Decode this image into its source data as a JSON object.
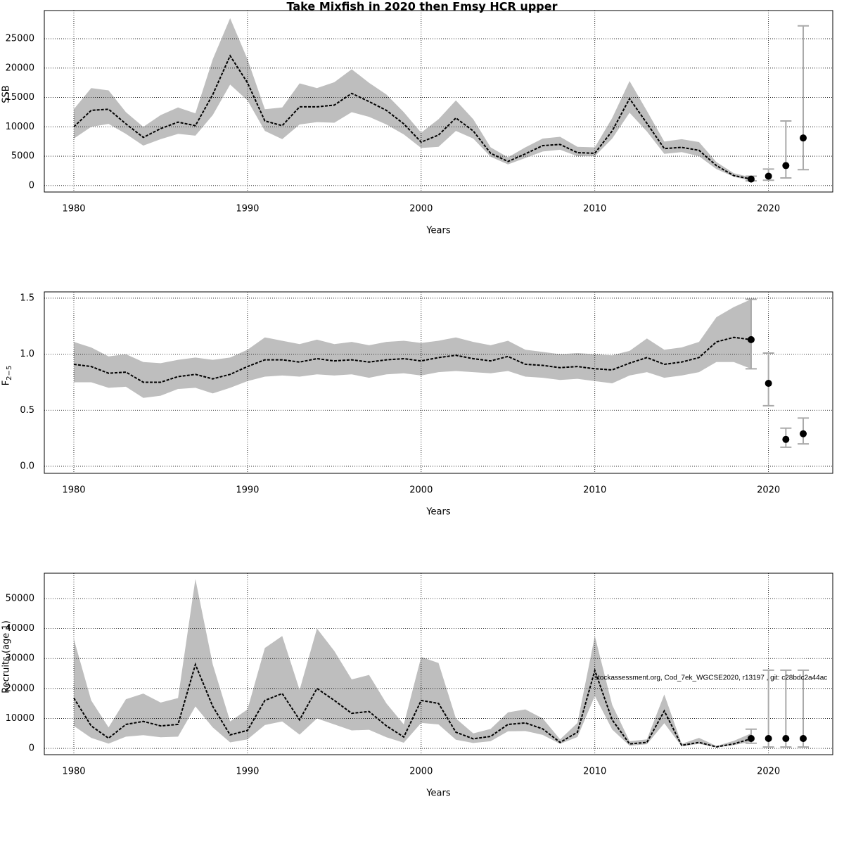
{
  "title": "Take Mixfish in 2020 then Fmsy HCR upper",
  "annotation": "stockassessment.org, Cod_7ek_WGCSE2020, r13197 , git: c28bdc2a44ac",
  "chart_data": [
    {
      "type": "line",
      "ylabel": "SSB",
      "xlabel": "Years",
      "x": [
        1980,
        1981,
        1982,
        1983,
        1984,
        1985,
        1986,
        1987,
        1988,
        1989,
        1990,
        1991,
        1992,
        1993,
        1994,
        1995,
        1996,
        1997,
        1998,
        1999,
        2000,
        2001,
        2002,
        2003,
        2004,
        2005,
        2006,
        2007,
        2008,
        2009,
        2010,
        2011,
        2012,
        2013,
        2014,
        2015,
        2016,
        2017,
        2018,
        2019
      ],
      "series": [
        {
          "color": "#000000",
          "values": [
            10000,
            12800,
            13000,
            10500,
            8200,
            9700,
            10800,
            10200,
            15500,
            22100,
            17500,
            11000,
            10200,
            13400,
            13400,
            13700,
            15700,
            14300,
            12800,
            10500,
            7400,
            8600,
            11500,
            9300,
            5500,
            4100,
            5400,
            6800,
            7000,
            5600,
            5500,
            9300,
            14800,
            10600,
            6300,
            6500,
            6000,
            3400,
            1700,
            1100
          ]
        }
      ],
      "band": {
        "color": "#bebebe",
        "high": [
          13000,
          16600,
          16200,
          12500,
          10000,
          12000,
          13300,
          12300,
          21500,
          28500,
          21500,
          13000,
          13300,
          17400,
          16600,
          17600,
          19800,
          17500,
          15500,
          12500,
          9000,
          11300,
          14500,
          11300,
          6500,
          4800,
          6500,
          8000,
          8300,
          6600,
          6500,
          11500,
          17800,
          12700,
          7500,
          7900,
          7400,
          4000,
          2100,
          1400
        ],
        "low": [
          8000,
          10000,
          10500,
          8800,
          6800,
          7900,
          8800,
          8500,
          12000,
          17200,
          14500,
          9300,
          7900,
          10400,
          10800,
          10700,
          12500,
          11700,
          10400,
          8700,
          6400,
          6600,
          9300,
          8000,
          4900,
          3600,
          4700,
          5800,
          6100,
          5000,
          5000,
          8000,
          12400,
          9200,
          5400,
          5700,
          5000,
          2800,
          1500,
          800
        ]
      },
      "points": {
        "color": "#000000",
        "bar_color": "#aaaaaa",
        "x": [
          2019,
          2020,
          2021,
          2022
        ],
        "values": [
          1100,
          1600,
          3400,
          8100
        ],
        "low": [
          800,
          900,
          1300,
          2700
        ],
        "high": [
          1600,
          2800,
          11000,
          27200
        ]
      },
      "xlim": [
        1978.3,
        2023.7
      ],
      "xticks": [
        1980,
        1990,
        2000,
        2010,
        2020
      ],
      "ylim": [
        -1100,
        29800
      ],
      "yticks": [
        0,
        5000,
        10000,
        15000,
        20000,
        25000
      ],
      "grid": true
    },
    {
      "type": "line",
      "ylabel": "F",
      "ylabel_sub": "2−5",
      "xlabel": "Years",
      "x": [
        1980,
        1981,
        1982,
        1983,
        1984,
        1985,
        1986,
        1987,
        1988,
        1989,
        1990,
        1991,
        1992,
        1993,
        1994,
        1995,
        1996,
        1997,
        1998,
        1999,
        2000,
        2001,
        2002,
        2003,
        2004,
        2005,
        2006,
        2007,
        2008,
        2009,
        2010,
        2011,
        2012,
        2013,
        2014,
        2015,
        2016,
        2017,
        2018,
        2019
      ],
      "series": [
        {
          "color": "#000000",
          "values": [
            0.91,
            0.89,
            0.83,
            0.84,
            0.75,
            0.75,
            0.8,
            0.82,
            0.78,
            0.82,
            0.89,
            0.95,
            0.95,
            0.93,
            0.96,
            0.94,
            0.95,
            0.93,
            0.95,
            0.96,
            0.94,
            0.97,
            0.99,
            0.96,
            0.94,
            0.98,
            0.91,
            0.9,
            0.88,
            0.89,
            0.87,
            0.86,
            0.92,
            0.97,
            0.91,
            0.93,
            0.97,
            1.11,
            1.15,
            1.13
          ]
        }
      ],
      "band": {
        "color": "#bebebe",
        "high": [
          1.11,
          1.06,
          0.98,
          1.0,
          0.93,
          0.92,
          0.95,
          0.97,
          0.95,
          0.97,
          1.04,
          1.15,
          1.12,
          1.09,
          1.13,
          1.09,
          1.11,
          1.08,
          1.11,
          1.12,
          1.1,
          1.12,
          1.15,
          1.11,
          1.08,
          1.12,
          1.04,
          1.02,
          1.0,
          1.01,
          1.0,
          0.99,
          1.03,
          1.14,
          1.04,
          1.06,
          1.11,
          1.33,
          1.42,
          1.49
        ],
        "low": [
          0.75,
          0.75,
          0.7,
          0.71,
          0.61,
          0.63,
          0.69,
          0.7,
          0.65,
          0.7,
          0.76,
          0.8,
          0.81,
          0.8,
          0.82,
          0.81,
          0.82,
          0.79,
          0.82,
          0.83,
          0.81,
          0.84,
          0.85,
          0.84,
          0.83,
          0.85,
          0.8,
          0.79,
          0.77,
          0.78,
          0.76,
          0.74,
          0.81,
          0.84,
          0.79,
          0.81,
          0.84,
          0.93,
          0.93,
          0.87
        ]
      },
      "points": {
        "color": "#000000",
        "bar_color": "#aaaaaa",
        "x": [
          2019,
          2020,
          2021,
          2022
        ],
        "values": [
          1.13,
          0.74,
          0.24,
          0.29
        ],
        "low": [
          0.87,
          0.54,
          0.17,
          0.2
        ],
        "high": [
          1.49,
          1.01,
          0.34,
          0.43
        ]
      },
      "xlim": [
        1978.3,
        2023.7
      ],
      "xticks": [
        1980,
        1990,
        2000,
        2010,
        2020
      ],
      "ylim": [
        -0.063,
        1.556
      ],
      "yticks": [
        {
          "value": 0,
          "label": "0.0"
        },
        {
          "value": 0.5,
          "label": "0.5"
        },
        {
          "value": 1,
          "label": "1.0"
        },
        {
          "value": 1.5,
          "label": "1.5"
        }
      ],
      "grid": true
    },
    {
      "type": "line",
      "ylabel": "Recruits (age 1)",
      "xlabel": "Years",
      "x": [
        1980,
        1981,
        1982,
        1983,
        1984,
        1985,
        1986,
        1987,
        1988,
        1989,
        1990,
        1991,
        1992,
        1993,
        1994,
        1995,
        1996,
        1997,
        1998,
        1999,
        2000,
        2001,
        2002,
        2003,
        2004,
        2005,
        2006,
        2007,
        2008,
        2009,
        2010,
        2011,
        2012,
        2013,
        2014,
        2015,
        2016,
        2017,
        2018,
        2019
      ],
      "series": [
        {
          "color": "#000000",
          "values": [
            16800,
            7500,
            3400,
            8000,
            9000,
            7500,
            8000,
            28000,
            14000,
            4500,
            6000,
            16000,
            18300,
            9500,
            20000,
            16000,
            11700,
            12300,
            7500,
            3800,
            16000,
            15000,
            5400,
            3200,
            4000,
            8000,
            8500,
            6500,
            2000,
            5400,
            26000,
            9500,
            1500,
            2000,
            12500,
            1000,
            2000,
            500,
            1500,
            3200
          ]
        }
      ],
      "band": {
        "color": "#bebebe",
        "high": [
          36500,
          16000,
          7000,
          16400,
          18300,
          15300,
          16800,
          56500,
          28000,
          9000,
          13000,
          33500,
          37500,
          19500,
          40000,
          32500,
          23000,
          24500,
          15000,
          8000,
          30500,
          28500,
          10000,
          5000,
          6500,
          12000,
          13000,
          10000,
          3000,
          8500,
          37500,
          14500,
          2400,
          3000,
          18000,
          1500,
          3500,
          800,
          2500,
          5000
        ],
        "low": [
          7500,
          3500,
          1600,
          3900,
          4400,
          3700,
          3900,
          14000,
          7000,
          2000,
          3000,
          7800,
          9000,
          4600,
          10000,
          8000,
          6000,
          6200,
          3700,
          1900,
          8500,
          8000,
          2900,
          1800,
          2400,
          5700,
          5800,
          4500,
          1500,
          3800,
          17500,
          6300,
          900,
          1400,
          8400,
          700,
          1500,
          350,
          1100,
          2200
        ]
      },
      "points": {
        "color": "#000000",
        "bar_color": "#aaaaaa",
        "x": [
          2019,
          2020,
          2021,
          2022
        ],
        "values": [
          3300,
          3300,
          3300,
          3300
        ],
        "low": [
          1700,
          450,
          450,
          450
        ],
        "high": [
          6400,
          26100,
          26100,
          26100
        ]
      },
      "xlim": [
        1978.3,
        2023.7
      ],
      "xticks": [
        1980,
        1990,
        2000,
        2010,
        2020
      ],
      "ylim": [
        -2100,
        58450
      ],
      "yticks": [
        0,
        10000,
        20000,
        30000,
        40000,
        50000
      ],
      "grid": true
    }
  ]
}
